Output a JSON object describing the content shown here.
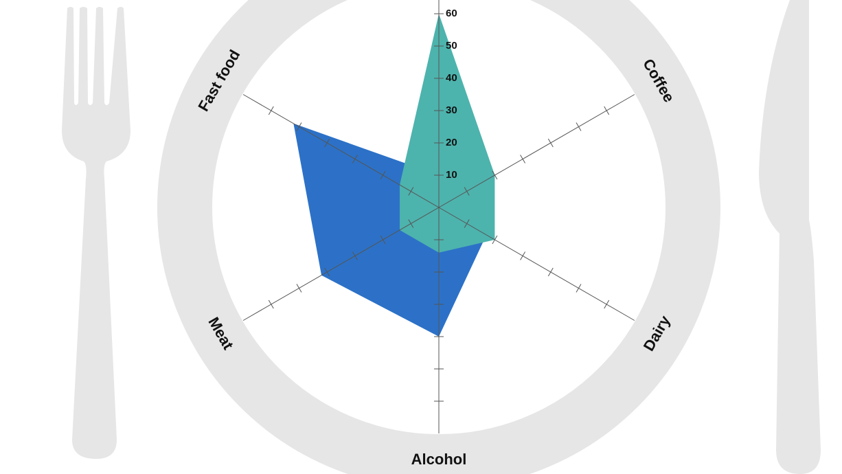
{
  "chart_data": {
    "type": "radar",
    "categories": [
      null,
      "Coffee",
      "Dairy",
      "Alcohol",
      "Meat",
      "Fast food"
    ],
    "series": [
      {
        "color": "#2c71c7",
        "values": [
          10,
          16,
          17,
          40,
          42,
          52
        ]
      },
      {
        "color": "#4db3ad",
        "values": [
          60,
          20,
          20,
          14,
          14,
          14
        ]
      }
    ],
    "ylim": [
      0,
      70
    ],
    "yticks": [
      10,
      20,
      30,
      40,
      50,
      60
    ]
  }
}
